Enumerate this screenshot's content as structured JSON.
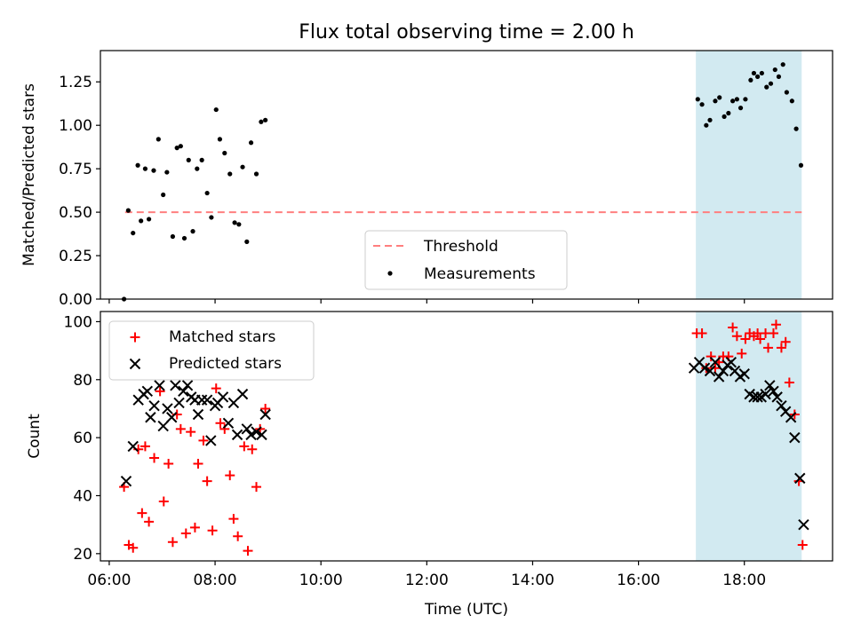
{
  "chart_data": {
    "title": "Flux total observing time = 2.00 h",
    "x_axis": {
      "label": "Time (UTC)",
      "unit": "hours UTC",
      "range": [
        "05:50",
        "19:40"
      ],
      "ticks": [
        {
          "value": 6,
          "label": "06:00"
        },
        {
          "value": 8,
          "label": "08:00"
        },
        {
          "value": 10,
          "label": "10:00"
        },
        {
          "value": 12,
          "label": "12:00"
        },
        {
          "value": 14,
          "label": "14:00"
        },
        {
          "value": 16,
          "label": "16:00"
        },
        {
          "value": 18,
          "label": "18:00"
        }
      ]
    },
    "highlight_span": {
      "x_start": "17:05",
      "x_end": "19:05",
      "color": "#add8e6"
    },
    "panels": [
      {
        "type": "scatter",
        "ylabel": "Matched/Predicted stars",
        "ylim": [
          0,
          1.43
        ],
        "yticks": [
          "0.00",
          "0.25",
          "0.50",
          "0.75",
          "1.00",
          "1.25"
        ],
        "threshold": {
          "name": "Threshold",
          "value": 0.5,
          "x_start": "06:18",
          "x_end": "19:05",
          "color": "#ff7f7f"
        },
        "legend": {
          "placement": "lower center",
          "entries": [
            "Threshold",
            "Measurements"
          ]
        },
        "series": [
          {
            "name": "Measurements",
            "color": "#000000",
            "marker": "dot",
            "points": [
              [
                6.28,
                0.0
              ],
              [
                6.36,
                0.51
              ],
              [
                6.45,
                0.38
              ],
              [
                6.54,
                0.77
              ],
              [
                6.6,
                0.45
              ],
              [
                6.68,
                0.75
              ],
              [
                6.75,
                0.46
              ],
              [
                6.84,
                0.74
              ],
              [
                6.93,
                0.92
              ],
              [
                7.02,
                0.6
              ],
              [
                7.09,
                0.73
              ],
              [
                7.2,
                0.36
              ],
              [
                7.28,
                0.87
              ],
              [
                7.35,
                0.88
              ],
              [
                7.42,
                0.35
              ],
              [
                7.5,
                0.8
              ],
              [
                7.58,
                0.39
              ],
              [
                7.66,
                0.75
              ],
              [
                7.75,
                0.8
              ],
              [
                7.85,
                0.61
              ],
              [
                7.93,
                0.47
              ],
              [
                8.02,
                1.09
              ],
              [
                8.09,
                0.92
              ],
              [
                8.18,
                0.84
              ],
              [
                8.28,
                0.72
              ],
              [
                8.37,
                0.44
              ],
              [
                8.45,
                0.43
              ],
              [
                8.52,
                0.76
              ],
              [
                8.6,
                0.33
              ],
              [
                8.68,
                0.9
              ],
              [
                8.78,
                0.72
              ],
              [
                8.87,
                1.02
              ],
              [
                8.95,
                1.03
              ],
              [
                17.12,
                1.15
              ],
              [
                17.2,
                1.12
              ],
              [
                17.28,
                1.0
              ],
              [
                17.35,
                1.03
              ],
              [
                17.45,
                1.14
              ],
              [
                17.53,
                1.16
              ],
              [
                17.62,
                1.05
              ],
              [
                17.7,
                1.07
              ],
              [
                17.78,
                1.14
              ],
              [
                17.86,
                1.15
              ],
              [
                17.93,
                1.1
              ],
              [
                18.02,
                1.15
              ],
              [
                18.12,
                1.26
              ],
              [
                18.18,
                1.3
              ],
              [
                18.25,
                1.28
              ],
              [
                18.33,
                1.3
              ],
              [
                18.42,
                1.22
              ],
              [
                18.5,
                1.24
              ],
              [
                18.58,
                1.32
              ],
              [
                18.65,
                1.28
              ],
              [
                18.73,
                1.35
              ],
              [
                18.8,
                1.19
              ],
              [
                18.9,
                1.14
              ],
              [
                18.98,
                0.98
              ],
              [
                19.07,
                0.77
              ]
            ]
          }
        ]
      },
      {
        "type": "scatter",
        "ylabel": "Count",
        "ylim": [
          17.5,
          103.5
        ],
        "yticks": [
          "20",
          "40",
          "60",
          "80",
          "100"
        ],
        "legend": {
          "placement": "upper left",
          "entries": [
            "Matched stars",
            "Predicted stars"
          ]
        },
        "series": [
          {
            "name": "Matched stars",
            "color": "#ff0000",
            "marker": "plus",
            "points": [
              [
                6.28,
                43
              ],
              [
                6.37,
                23
              ],
              [
                6.45,
                22
              ],
              [
                6.55,
                56
              ],
              [
                6.62,
                34
              ],
              [
                6.68,
                57
              ],
              [
                6.75,
                31
              ],
              [
                6.85,
                53
              ],
              [
                6.96,
                76
              ],
              [
                7.03,
                38
              ],
              [
                7.12,
                51
              ],
              [
                7.2,
                24
              ],
              [
                7.28,
                68
              ],
              [
                7.35,
                63
              ],
              [
                7.45,
                27
              ],
              [
                7.54,
                62
              ],
              [
                7.62,
                29
              ],
              [
                7.68,
                51
              ],
              [
                7.78,
                59
              ],
              [
                7.85,
                45
              ],
              [
                7.95,
                28
              ],
              [
                8.02,
                77
              ],
              [
                8.1,
                65
              ],
              [
                8.18,
                63
              ],
              [
                8.28,
                47
              ],
              [
                8.35,
                32
              ],
              [
                8.43,
                26
              ],
              [
                8.55,
                57
              ],
              [
                8.62,
                21
              ],
              [
                8.7,
                56
              ],
              [
                8.78,
                43
              ],
              [
                8.85,
                63
              ],
              [
                8.95,
                70
              ],
              [
                17.1,
                96
              ],
              [
                17.2,
                96
              ],
              [
                17.28,
                84
              ],
              [
                17.37,
                88
              ],
              [
                17.45,
                84
              ],
              [
                17.52,
                86
              ],
              [
                17.6,
                88
              ],
              [
                17.7,
                88
              ],
              [
                17.78,
                98
              ],
              [
                17.86,
                95
              ],
              [
                17.95,
                89
              ],
              [
                18.02,
                94
              ],
              [
                18.1,
                96
              ],
              [
                18.18,
                95
              ],
              [
                18.25,
                96
              ],
              [
                18.3,
                94
              ],
              [
                18.4,
                96
              ],
              [
                18.45,
                91
              ],
              [
                18.55,
                96
              ],
              [
                18.6,
                99
              ],
              [
                18.7,
                91
              ],
              [
                18.78,
                93
              ],
              [
                18.85,
                79
              ],
              [
                18.95,
                68
              ],
              [
                19.03,
                45
              ],
              [
                19.1,
                23
              ]
            ]
          },
          {
            "name": "Predicted stars",
            "color": "#000000",
            "marker": "x",
            "points": [
              [
                6.32,
                45
              ],
              [
                6.45,
                57
              ],
              [
                6.55,
                73
              ],
              [
                6.65,
                75
              ],
              [
                6.72,
                76
              ],
              [
                6.78,
                67
              ],
              [
                6.85,
                71
              ],
              [
                6.95,
                78
              ],
              [
                7.02,
                64
              ],
              [
                7.1,
                70
              ],
              [
                7.18,
                67
              ],
              [
                7.25,
                78
              ],
              [
                7.32,
                72
              ],
              [
                7.4,
                76
              ],
              [
                7.48,
                78
              ],
              [
                7.55,
                74
              ],
              [
                7.62,
                73
              ],
              [
                7.68,
                68
              ],
              [
                7.75,
                73
              ],
              [
                7.85,
                73
              ],
              [
                7.92,
                59
              ],
              [
                8.0,
                71
              ],
              [
                8.05,
                72
              ],
              [
                8.15,
                74
              ],
              [
                8.25,
                65
              ],
              [
                8.35,
                72
              ],
              [
                8.42,
                61
              ],
              [
                8.52,
                75
              ],
              [
                8.6,
                63
              ],
              [
                8.68,
                61
              ],
              [
                8.78,
                62
              ],
              [
                8.88,
                61
              ],
              [
                8.95,
                68
              ],
              [
                17.05,
                84
              ],
              [
                17.15,
                86
              ],
              [
                17.25,
                84
              ],
              [
                17.35,
                83
              ],
              [
                17.45,
                86
              ],
              [
                17.52,
                81
              ],
              [
                17.6,
                83
              ],
              [
                17.68,
                85
              ],
              [
                17.75,
                86
              ],
              [
                17.82,
                83
              ],
              [
                17.92,
                81
              ],
              [
                18.0,
                82
              ],
              [
                18.1,
                75
              ],
              [
                18.18,
                74
              ],
              [
                18.25,
                74
              ],
              [
                18.32,
                74
              ],
              [
                18.4,
                75
              ],
              [
                18.48,
                78
              ],
              [
                18.55,
                76
              ],
              [
                18.62,
                74
              ],
              [
                18.7,
                71
              ],
              [
                18.78,
                69
              ],
              [
                18.88,
                67
              ],
              [
                18.95,
                60
              ],
              [
                19.05,
                46
              ],
              [
                19.12,
                30
              ]
            ]
          }
        ]
      }
    ]
  }
}
